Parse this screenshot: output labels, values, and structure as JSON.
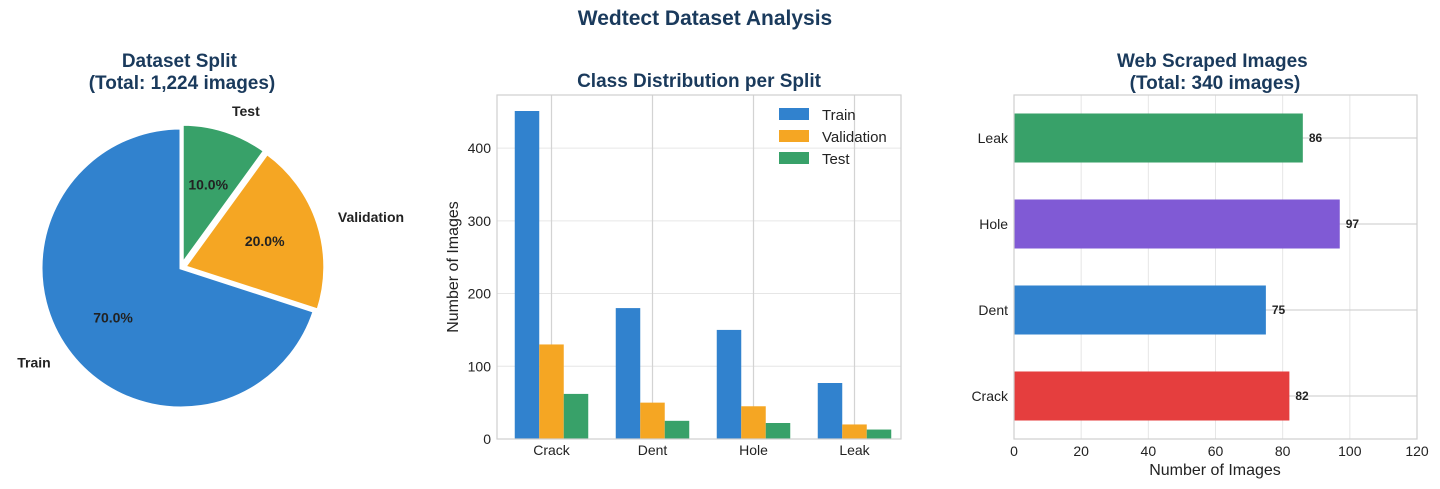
{
  "suptitle": "Wedtect Dataset Analysis",
  "chart_data": [
    {
      "type": "pie",
      "title": "Dataset Split\n(Total: 1,224 images)",
      "labels": [
        "Train",
        "Validation",
        "Test"
      ],
      "values": [
        70.0,
        20.0,
        10.0
      ],
      "autopct": [
        "70.0%",
        "20.0%",
        "10.0%"
      ],
      "colors": [
        "#3182ce",
        "#f5a623",
        "#38a169"
      ]
    },
    {
      "type": "bar",
      "title": "Class Distribution per Split",
      "categories": [
        "Crack",
        "Dent",
        "Hole",
        "Leak"
      ],
      "series": [
        {
          "name": "Train",
          "color": "#3182ce",
          "values": [
            451,
            180,
            150,
            77
          ]
        },
        {
          "name": "Validation",
          "color": "#f5a623",
          "values": [
            130,
            50,
            45,
            20
          ]
        },
        {
          "name": "Test",
          "color": "#38a169",
          "values": [
            62,
            25,
            22,
            13
          ]
        }
      ],
      "xlabel": "",
      "ylabel": "Number of Images",
      "ylim": [
        0,
        473
      ],
      "yticks": [
        0,
        100,
        200,
        300,
        400
      ],
      "legend": "top-right",
      "grid": true
    },
    {
      "type": "bar",
      "orientation": "horizontal",
      "title": "Web Scraped Images\n(Total: 340 images)",
      "categories": [
        "Crack",
        "Dent",
        "Hole",
        "Leak"
      ],
      "values": [
        82,
        75,
        97,
        86
      ],
      "colors": [
        "#e53e3e",
        "#3182ce",
        "#805ad5",
        "#38a169"
      ],
      "xlabel": "Number of Images",
      "ylabel": "",
      "xlim": [
        0,
        120
      ],
      "xticks": [
        0,
        20,
        40,
        60,
        80,
        100,
        120
      ],
      "data_labels": true,
      "grid": true
    }
  ]
}
